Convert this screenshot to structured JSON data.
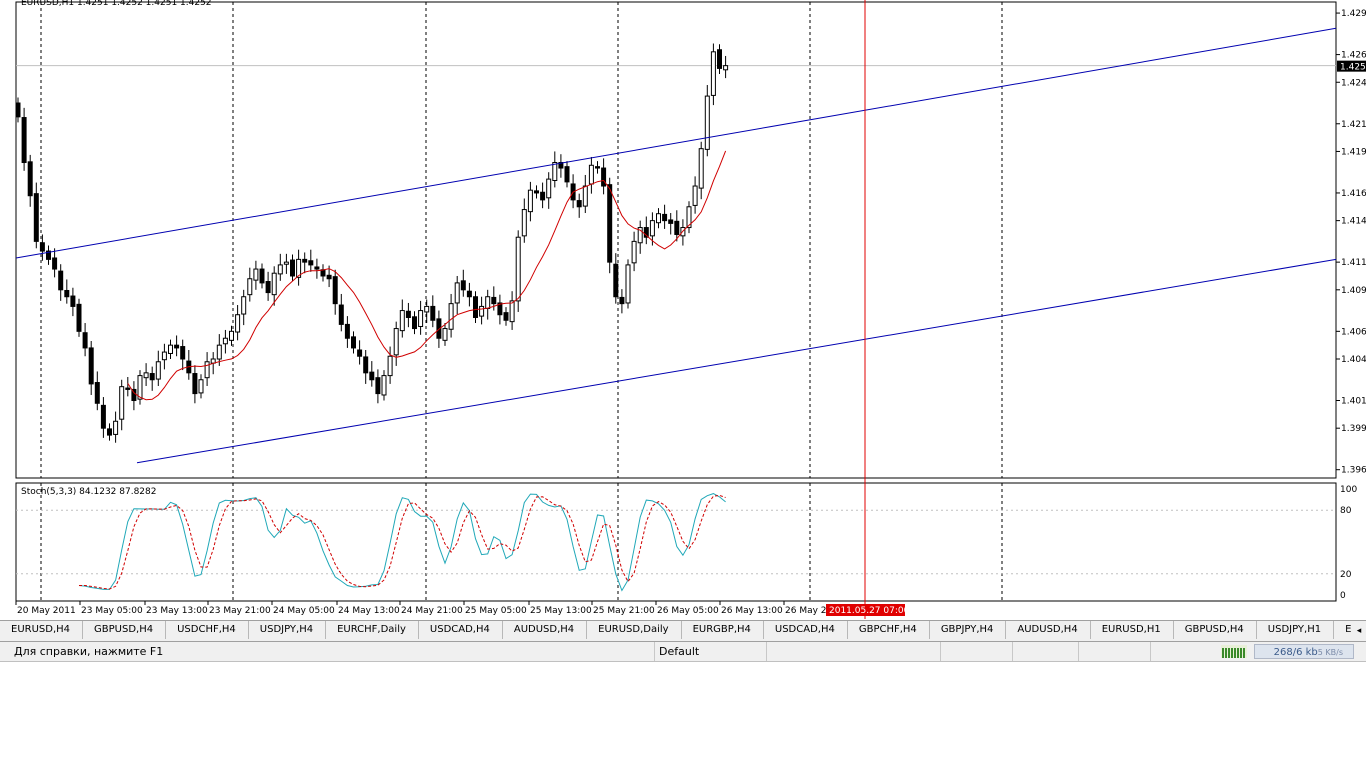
{
  "chart": {
    "title": "EURUSD,H1  1.4251 1.4252 1.4251 1.4252",
    "current_price": "1.425",
    "price_ticks": [
      "1.429",
      "1.426",
      "1.424",
      "1.421",
      "1.419",
      "1.416",
      "1.414",
      "1.411",
      "1.409",
      "1.406",
      "1.404",
      "1.401",
      "1.399",
      "1.396"
    ],
    "price_range": [
      1.3954,
      1.4298
    ],
    "colors": {
      "channel": "#0000b0",
      "ma": "#d00000",
      "candle_bull": "#ffffff",
      "candle_bear": "#000000",
      "cursor": "#e00000",
      "stoch_main": "#20a8b8",
      "stoch_signal": "#d00000"
    }
  },
  "stochastic": {
    "title": "Stoch(5,3,3) 84.1232 87.8282",
    "ticks": [
      "100",
      "80",
      "20",
      "0"
    ]
  },
  "time_axis": {
    "labels": [
      "20 May 2011",
      "23 May 05:00",
      "23 May 13:00",
      "23 May 21:00",
      "24 May 05:00",
      "24 May 13:00",
      "24 May 21:00",
      "25 May 05:00",
      "25 May 13:00",
      "25 May 21:00",
      "26 May 05:00",
      "26 May 13:00",
      "26 May 2"
    ],
    "cursor_label": "2011.05.27 07:00"
  },
  "tabs": [
    "EURUSD,H4",
    "GBPUSD,H4",
    "USDCHF,H4",
    "USDJPY,H4",
    "EURCHF,Daily",
    "USDCAD,H4",
    "AUDUSD,H4",
    "EURUSD,Daily",
    "EURGBP,H4",
    "USDCAD,H4",
    "GBPCHF,H4",
    "GBPJPY,H4",
    "AUDUSD,H4",
    "EURUSD,H1",
    "GBPUSD,H4",
    "USDJPY,H1",
    "EURGE"
  ],
  "status": {
    "help": "Для справки, нажмите F1",
    "profile": "Default",
    "traffic": "268/6 kb",
    "traffic_overlay": "5 KB/s"
  }
}
